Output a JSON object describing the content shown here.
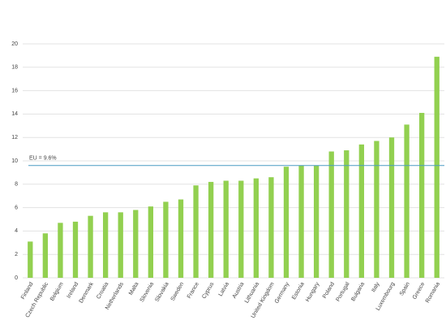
{
  "chart_data": {
    "type": "bar",
    "categories": [
      "Finland",
      "Czech Republic",
      "Belgium",
      "Ireland",
      "Denmark",
      "Croatia",
      "Netherlands",
      "Malta",
      "Slovenia",
      "Slovakia",
      "Sweden",
      "France",
      "Cyprus",
      "Latvia",
      "Austria",
      "Lithuania",
      "United Kingdom",
      "Germany",
      "Estonia",
      "Hungary",
      "Poland",
      "Portugal",
      "Bulgaria",
      "Italy",
      "Luxembourg",
      "Spain",
      "Greece",
      "Romania"
    ],
    "values": [
      3.1,
      3.8,
      4.7,
      4.8,
      5.3,
      5.6,
      5.6,
      5.8,
      6.1,
      6.5,
      6.7,
      7.9,
      8.2,
      8.3,
      8.3,
      8.5,
      8.6,
      9.5,
      9.6,
      9.6,
      10.8,
      10.9,
      11.4,
      11.7,
      12.0,
      13.1,
      14.1,
      18.9
    ],
    "color": "#92d050",
    "ylim": [
      0,
      20
    ],
    "yticks": [
      0,
      2,
      4,
      6,
      8,
      10,
      12,
      14,
      16,
      18,
      20
    ],
    "grid": true,
    "reference_line": {
      "value": 9.6,
      "label": "EU = 9.6%",
      "color": "#4a9bc4"
    }
  }
}
